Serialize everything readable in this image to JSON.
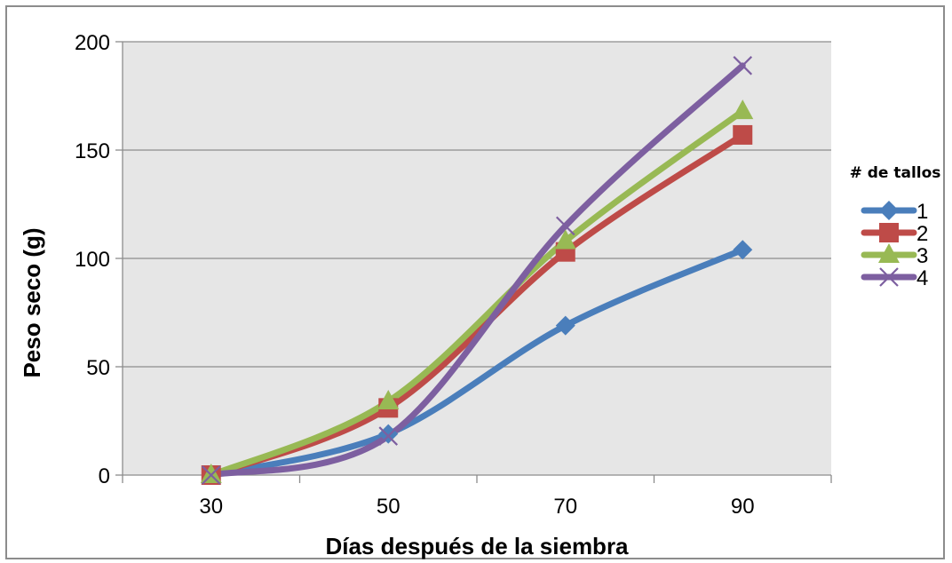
{
  "chart_data": {
    "type": "line",
    "xlabel": "Días después de la siembra",
    "ylabel": "Peso seco (g)",
    "x": [
      30,
      50,
      70,
      90
    ],
    "xticks": [
      "30",
      "50",
      "70",
      "90"
    ],
    "xlim": [
      20,
      100
    ],
    "ylim": [
      0,
      200
    ],
    "yticks": [
      "0",
      "50",
      "100",
      "150",
      "200"
    ],
    "grid": "horizontal",
    "smooth": true,
    "legend_title": "# de tallos",
    "legend_position": "right",
    "series": [
      {
        "name": "1",
        "values": [
          0,
          19,
          69,
          104
        ],
        "color": "#4a7ebb",
        "marker": "diamond"
      },
      {
        "name": "2",
        "values": [
          0,
          31,
          103,
          157
        ],
        "color": "#be4b48",
        "marker": "square"
      },
      {
        "name": "3",
        "values": [
          0,
          34,
          108,
          168
        ],
        "color": "#98b954",
        "marker": "triangle"
      },
      {
        "name": "4",
        "values": [
          0,
          18,
          115,
          189
        ],
        "color": "#7d5fa0",
        "marker": "x"
      }
    ]
  }
}
